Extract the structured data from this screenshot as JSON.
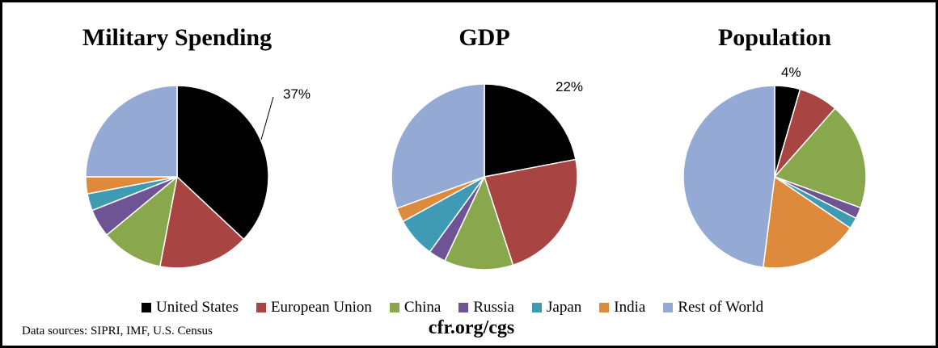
{
  "chart_data": [
    {
      "type": "pie",
      "title": "Military Spending",
      "categories": [
        "United States",
        "European Union",
        "China",
        "Russia",
        "Japan",
        "India",
        "Rest of World"
      ],
      "values": [
        37,
        16,
        11,
        5,
        3,
        3,
        25
      ],
      "data_labels": [
        "37%",
        "",
        "",
        "",
        "",
        "",
        ""
      ],
      "colors": [
        "#000000",
        "#a84442",
        "#89a74d",
        "#6e5494",
        "#3f9bb3",
        "#de8a3c",
        "#94a9d3"
      ]
    },
    {
      "type": "pie",
      "title": "GDP",
      "categories": [
        "United States",
        "European Union",
        "China",
        "Russia",
        "Japan",
        "India",
        "Rest of World"
      ],
      "values": [
        22,
        23,
        12,
        3,
        7,
        2.5,
        30.5
      ],
      "data_labels": [
        "22%",
        "",
        "",
        "",
        "",
        "",
        ""
      ],
      "colors": [
        "#000000",
        "#a84442",
        "#89a74d",
        "#6e5494",
        "#3f9bb3",
        "#de8a3c",
        "#94a9d3"
      ]
    },
    {
      "type": "pie",
      "title": "Population",
      "categories": [
        "United States",
        "European Union",
        "China",
        "Russia",
        "Japan",
        "India",
        "Rest of World"
      ],
      "values": [
        4.5,
        7,
        19,
        2,
        2,
        17.5,
        48
      ],
      "data_labels": [
        "4%",
        "",
        "",
        "",
        "",
        "",
        ""
      ],
      "colors": [
        "#000000",
        "#a84442",
        "#89a74d",
        "#6e5494",
        "#3f9bb3",
        "#de8a3c",
        "#94a9d3"
      ]
    }
  ],
  "legend": {
    "position": "bottom",
    "items": [
      {
        "label": "United States",
        "color": "#000000"
      },
      {
        "label": "European Union",
        "color": "#a84442"
      },
      {
        "label": "China",
        "color": "#89a74d"
      },
      {
        "label": "Russia",
        "color": "#6e5494"
      },
      {
        "label": "Japan",
        "color": "#3f9bb3"
      },
      {
        "label": "India",
        "color": "#de8a3c"
      },
      {
        "label": "Rest of World",
        "color": "#94a9d3"
      }
    ]
  },
  "source_note": "Data sources: SIPRI, IMF, U.S. Census",
  "credit": "cfr.org/cgs"
}
